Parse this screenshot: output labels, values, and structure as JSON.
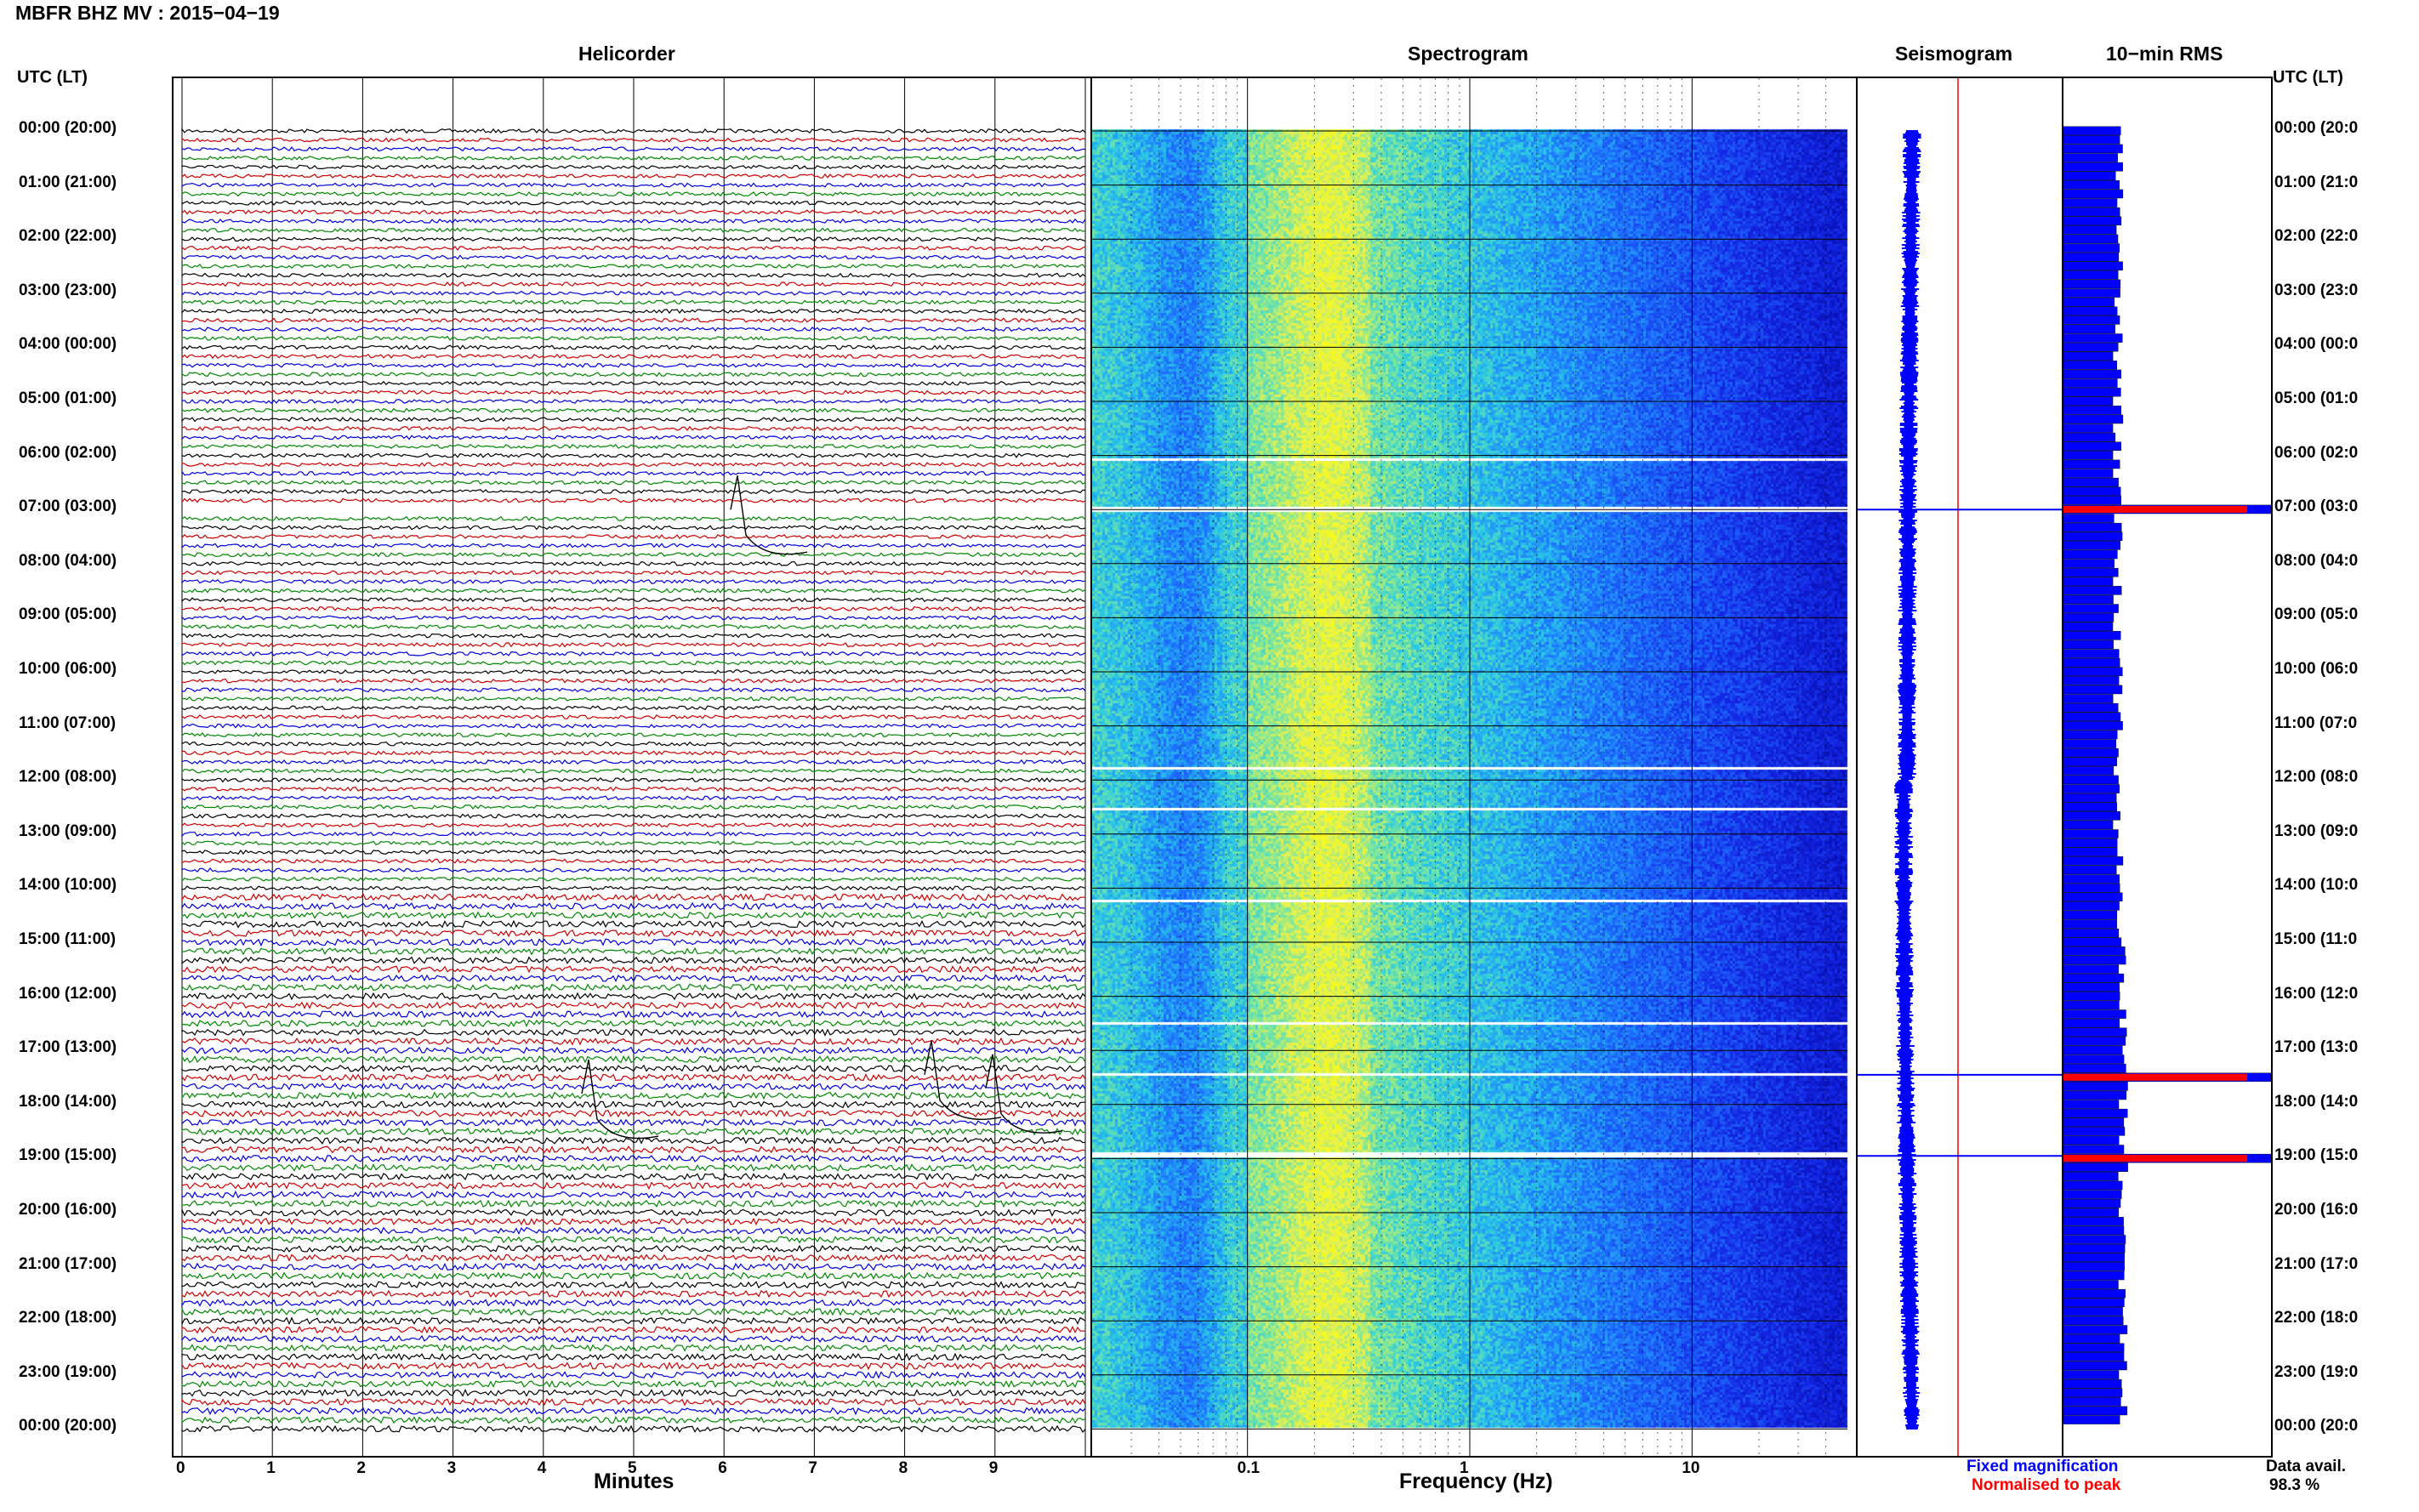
{
  "page_title": "MBFR BHZ MV : 2015−04−19",
  "panels": {
    "helicorder": "Helicorder",
    "spectrogram": "Spectrogram",
    "seismogram": "Seismogram",
    "rms": "10−min RMS"
  },
  "axis": {
    "left_label": "UTC (LT)",
    "right_label": "UTC (LT)",
    "minutes_label": "Minutes",
    "frequency_label": "Frequency (Hz)"
  },
  "time_labels_left": [
    "00:00 (20:00)",
    "01:00 (21:00)",
    "02:00 (22:00)",
    "03:00 (23:00)",
    "04:00 (00:00)",
    "05:00 (01:00)",
    "06:00 (02:00)",
    "07:00 (03:00)",
    "08:00 (04:00)",
    "09:00 (05:00)",
    "10:00 (06:00)",
    "11:00 (07:00)",
    "12:00 (08:00)",
    "13:00 (09:00)",
    "14:00 (10:00)",
    "15:00 (11:00)",
    "16:00 (12:00)",
    "17:00 (13:00)",
    "18:00 (14:00)",
    "19:00 (15:00)",
    "20:00 (16:00)",
    "21:00 (17:00)",
    "22:00 (18:00)",
    "23:00 (19:00)",
    "00:00 (20:00)"
  ],
  "time_labels_right": [
    "00:00 (20:0",
    "01:00 (21:0",
    "02:00 (22:0",
    "03:00 (23:0",
    "04:00 (00:0",
    "05:00 (01:0",
    "06:00 (02:0",
    "07:00 (03:0",
    "08:00 (04:0",
    "09:00 (05:0",
    "10:00 (06:0",
    "11:00 (07:0",
    "12:00 (08:0",
    "13:00 (09:0",
    "14:00 (10:0",
    "15:00 (11:0",
    "16:00 (12:0",
    "17:00 (13:0",
    "18:00 (14:0",
    "19:00 (15:0",
    "20:00 (16:0",
    "21:00 (17:0",
    "22:00 (18:0",
    "23:00 (19:0",
    "00:00 (20:0"
  ],
  "minute_ticks": [
    "0",
    "1",
    "2",
    "3",
    "4",
    "5",
    "6",
    "7",
    "8",
    "9"
  ],
  "freq_ticks": [
    "0.1",
    "1",
    "10"
  ],
  "legend": {
    "fixed": "Fixed magnification",
    "normalised": "Normalised to peak",
    "data_avail_label": "Data avail.",
    "data_avail_value": "98.3 %"
  },
  "colors": {
    "trace_cycle": [
      "#000000",
      "#cc0000",
      "#0000dd",
      "#008800"
    ],
    "seismogram": "#0000ff",
    "rms_bar": "#0000ff",
    "rms_peak": "#ff0000"
  },
  "chart_data": {
    "type": "heatmap",
    "title": "MBFR BHZ MV : 2015−04−19",
    "helicorder": {
      "x_label": "Minutes",
      "x_range": [
        0,
        10
      ],
      "rows_per_hour": 6,
      "hours": 24,
      "gaps_hours": [
        7.0,
        17.45,
        18.95
      ]
    },
    "spectrogram": {
      "x_label": "Frequency (Hz)",
      "x_scale": "log",
      "x_range": [
        0.02,
        50
      ],
      "x_ticks": [
        0.1,
        1,
        10
      ]
    },
    "rms_10min": {
      "peaks": [
        {
          "time": "07:00",
          "level": "max"
        },
        {
          "time": "17:30",
          "level": "max"
        },
        {
          "time": "19:00",
          "level": "max"
        }
      ]
    },
    "data_availability_percent": 98.3
  }
}
